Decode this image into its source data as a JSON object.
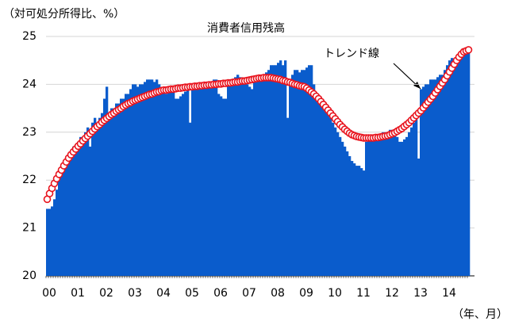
{
  "chart_data": {
    "type": "bar_line",
    "ylabel": "（対可処分所得比、%）",
    "xlabel": "（年、月）",
    "categories": [
      "00",
      null,
      null,
      null,
      null,
      null,
      null,
      null,
      null,
      null,
      null,
      null,
      "01",
      null,
      null,
      null,
      null,
      null,
      null,
      null,
      null,
      null,
      null,
      null,
      "02",
      null,
      null,
      null,
      null,
      null,
      null,
      null,
      null,
      null,
      null,
      null,
      "03",
      null,
      null,
      null,
      null,
      null,
      null,
      null,
      null,
      null,
      null,
      null,
      "04",
      null,
      null,
      null,
      null,
      null,
      null,
      null,
      null,
      null,
      null,
      null,
      "05",
      null,
      null,
      null,
      null,
      null,
      null,
      null,
      null,
      null,
      null,
      null,
      "06",
      null,
      null,
      null,
      null,
      null,
      null,
      null,
      null,
      null,
      null,
      null,
      "07",
      null,
      null,
      null,
      null,
      null,
      null,
      null,
      null,
      null,
      null,
      null,
      "08",
      null,
      null,
      null,
      null,
      null,
      null,
      null,
      null,
      null,
      null,
      null,
      "09",
      null,
      null,
      null,
      null,
      null,
      null,
      null,
      null,
      null,
      null,
      null,
      "10",
      null,
      null,
      null,
      null,
      null,
      null,
      null,
      null,
      null,
      null,
      null,
      "11",
      null,
      null,
      null,
      null,
      null,
      null,
      null,
      null,
      null,
      null,
      null,
      "12",
      null,
      null,
      null,
      null,
      null,
      null,
      null,
      null,
      null,
      null,
      null,
      "13",
      null,
      null,
      null,
      null,
      null,
      null,
      null,
      null,
      null,
      null,
      null,
      "14",
      null,
      null,
      null,
      null,
      null,
      null,
      null,
      null,
      null
    ],
    "series": [
      {
        "name": "消費者信用残高",
        "kind": "bar",
        "color": "#0a5ccc",
        "values": [
          21.4,
          21.4,
          21.45,
          21.6,
          21.8,
          22.0,
          22.2,
          22.3,
          22.4,
          22.5,
          22.6,
          22.7,
          22.7,
          22.8,
          22.9,
          22.8,
          23.0,
          23.1,
          22.7,
          23.2,
          23.3,
          23.1,
          23.3,
          23.4,
          23.7,
          23.95,
          23.4,
          23.5,
          23.5,
          23.6,
          23.6,
          23.7,
          23.7,
          23.8,
          23.8,
          23.9,
          24.0,
          24.0,
          23.95,
          24.0,
          24.0,
          24.05,
          24.1,
          24.1,
          24.1,
          24.05,
          24.1,
          24.0,
          23.8,
          23.85,
          23.8,
          23.85,
          23.9,
          23.9,
          23.7,
          23.7,
          23.75,
          23.8,
          23.85,
          23.9,
          23.2,
          23.9,
          23.95,
          24.0,
          24.0,
          24.0,
          24.05,
          24.0,
          24.05,
          24.05,
          24.1,
          24.1,
          23.8,
          23.75,
          23.7,
          23.7,
          24.0,
          24.1,
          24.1,
          24.15,
          24.2,
          24.15,
          24.1,
          24.1,
          24.0,
          23.95,
          23.9,
          24.1,
          24.1,
          24.15,
          24.2,
          24.2,
          24.25,
          24.3,
          24.4,
          24.4,
          24.4,
          24.45,
          24.5,
          24.4,
          24.5,
          23.3,
          24.0,
          24.2,
          24.3,
          24.3,
          24.25,
          24.3,
          24.3,
          24.35,
          24.4,
          24.4,
          24.0,
          23.8,
          23.7,
          23.6,
          23.6,
          23.5,
          23.4,
          23.3,
          23.2,
          23.1,
          23.0,
          22.9,
          22.8,
          22.7,
          22.6,
          22.5,
          22.4,
          22.35,
          22.3,
          22.3,
          22.25,
          22.2,
          22.8,
          22.85,
          22.9,
          22.9,
          22.9,
          22.9,
          22.95,
          23.0,
          23.0,
          23.0,
          23.05,
          23.05,
          23.0,
          22.9,
          22.8,
          22.8,
          22.85,
          22.9,
          23.0,
          23.1,
          23.2,
          23.3,
          22.45,
          23.9,
          23.95,
          24.0,
          24.0,
          24.1,
          24.1,
          24.1,
          24.15,
          24.2,
          24.2,
          24.3,
          24.4,
          24.5,
          24.55,
          24.5,
          24.55,
          24.5,
          24.55,
          24.6,
          24.65,
          24.7
        ]
      },
      {
        "name": "トレンド線",
        "kind": "line",
        "color": "#e8141e",
        "values": [
          21.6,
          21.72,
          21.83,
          21.93,
          22.03,
          22.12,
          22.21,
          22.3,
          22.38,
          22.46,
          22.53,
          22.59,
          22.65,
          22.71,
          22.76,
          22.82,
          22.87,
          22.92,
          22.97,
          23.02,
          23.07,
          23.12,
          23.16,
          23.21,
          23.25,
          23.29,
          23.33,
          23.37,
          23.4,
          23.44,
          23.47,
          23.5,
          23.54,
          23.57,
          23.6,
          23.62,
          23.65,
          23.67,
          23.69,
          23.71,
          23.73,
          23.75,
          23.77,
          23.79,
          23.8,
          23.82,
          23.84,
          23.85,
          23.87,
          23.88,
          23.88,
          23.89,
          23.9,
          23.9,
          23.91,
          23.92,
          23.92,
          23.93,
          23.94,
          23.94,
          23.95,
          23.95,
          23.96,
          23.96,
          23.97,
          23.97,
          23.98,
          23.98,
          23.99,
          23.99,
          24.0,
          24.0,
          24.01,
          24.01,
          24.02,
          24.02,
          24.03,
          24.03,
          24.04,
          24.05,
          24.05,
          24.06,
          24.07,
          24.07,
          24.08,
          24.09,
          24.1,
          24.11,
          24.12,
          24.13,
          24.13,
          24.14,
          24.14,
          24.14,
          24.14,
          24.13,
          24.12,
          24.11,
          24.1,
          24.08,
          24.07,
          24.05,
          24.04,
          24.02,
          24.0,
          23.99,
          23.97,
          23.96,
          23.95,
          23.92,
          23.88,
          23.84,
          23.8,
          23.75,
          23.7,
          23.64,
          23.58,
          23.52,
          23.46,
          23.4,
          23.34,
          23.28,
          23.22,
          23.16,
          23.11,
          23.06,
          23.02,
          22.98,
          22.95,
          22.93,
          22.91,
          22.9,
          22.89,
          22.88,
          22.88,
          22.88,
          22.88,
          22.88,
          22.89,
          22.89,
          22.9,
          22.91,
          22.92,
          22.93,
          22.95,
          22.97,
          22.99,
          23.02,
          23.05,
          23.08,
          23.12,
          23.16,
          23.2,
          23.25,
          23.3,
          23.35,
          23.4,
          23.45,
          23.51,
          23.57,
          23.63,
          23.69,
          23.75,
          23.82,
          23.89,
          23.96,
          24.03,
          24.1,
          24.18,
          24.26,
          24.34,
          24.42,
          24.5,
          24.57,
          24.63,
          24.68,
          24.7,
          24.72
        ]
      }
    ],
    "ylim": [
      20,
      25
    ],
    "yticks": [
      20,
      21,
      22,
      23,
      24,
      25
    ],
    "grid": true
  }
}
